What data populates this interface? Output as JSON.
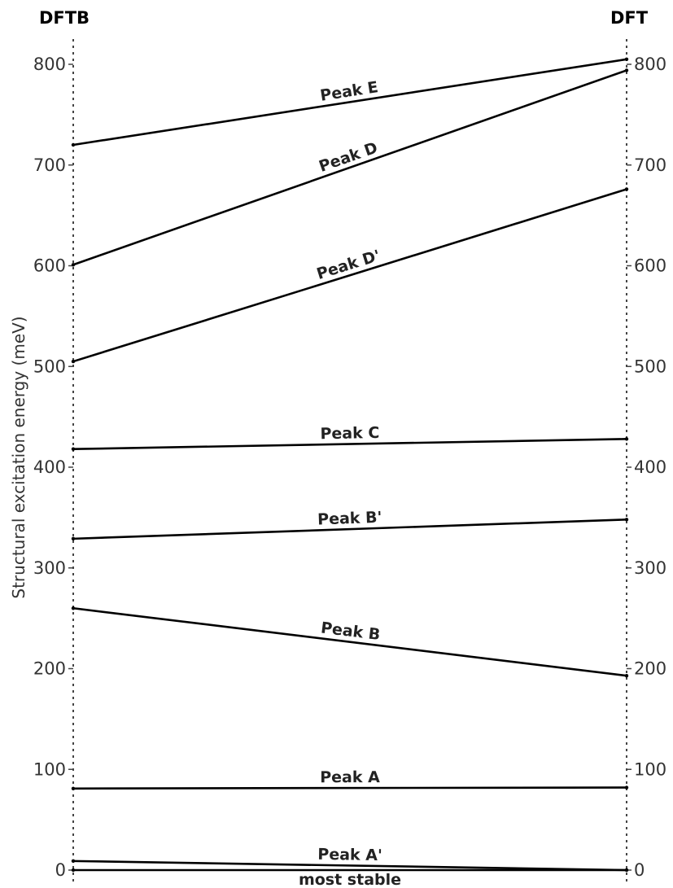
{
  "chart_data": {
    "type": "line",
    "left_label": "DFTB",
    "right_label": "DFT",
    "ylabel": "Structural excitation energy (meV)",
    "ylim": [
      0,
      810
    ],
    "yticks": [
      0,
      100,
      200,
      300,
      400,
      500,
      600,
      700,
      800
    ],
    "grid": false,
    "series": [
      {
        "name": "most stable",
        "dftb": 0,
        "dft": 0
      },
      {
        "name": "Peak A'",
        "dftb": 9,
        "dft": 0
      },
      {
        "name": "Peak A",
        "dftb": 81,
        "dft": 82
      },
      {
        "name": "Peak B",
        "dftb": 260,
        "dft": 193
      },
      {
        "name": "Peak B'",
        "dftb": 329,
        "dft": 348
      },
      {
        "name": "Peak C",
        "dftb": 418,
        "dft": 428
      },
      {
        "name": "Peak D'",
        "dftb": 505,
        "dft": 676
      },
      {
        "name": "Peak D",
        "dftb": 601,
        "dft": 794
      },
      {
        "name": "Peak E",
        "dftb": 720,
        "dft": 805
      }
    ]
  }
}
